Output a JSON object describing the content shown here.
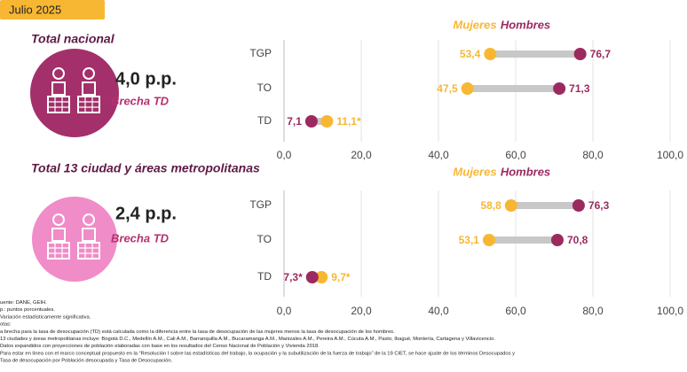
{
  "badge": "Julio 2025",
  "chart_data": [
    {
      "type": "dumbbell",
      "title": "Total nacional",
      "gap_label": "4,0 p.p.",
      "gap_caption": "Brecha TD",
      "categories": [
        "TGP",
        "TO",
        "TD"
      ],
      "series": [
        {
          "name": "Mujeres",
          "color": "#f8b733",
          "values": [
            53.4,
            47.5,
            11.1
          ],
          "value_labels": [
            "53,4",
            "47,5",
            "11,1*"
          ]
        },
        {
          "name": "Hombres",
          "color": "#9b2a5f",
          "values": [
            76.7,
            71.3,
            7.1
          ],
          "value_labels": [
            "76,7",
            "71,3",
            "7,1"
          ]
        }
      ],
      "xlim": [
        0,
        100
      ],
      "xticks": [
        {
          "value": 0,
          "label": "0,0"
        },
        {
          "value": 20,
          "label": "20,0"
        },
        {
          "value": 40,
          "label": "40,0"
        },
        {
          "value": 60,
          "label": "60,0"
        },
        {
          "value": 80,
          "label": "80,0"
        },
        {
          "value": 100,
          "label": "100,0"
        }
      ],
      "grid": true,
      "icon_color": "#a3306a"
    },
    {
      "type": "dumbbell",
      "title": "Total 13 ciudad y áreas metropolitanas",
      "gap_label": "2,4 p.p.",
      "gap_caption": "Brecha TD",
      "categories": [
        "TGP",
        "TO",
        "TD"
      ],
      "series": [
        {
          "name": "Mujeres",
          "color": "#f8b733",
          "values": [
            58.8,
            53.1,
            9.7
          ],
          "value_labels": [
            "58,8",
            "53,1",
            "9,7*"
          ]
        },
        {
          "name": "Hombres",
          "color": "#9b2a5f",
          "values": [
            76.3,
            70.8,
            7.3
          ],
          "value_labels": [
            "76,3",
            "70,8",
            "7,3*"
          ]
        }
      ],
      "xlim": [
        0,
        100
      ],
      "xticks": [
        {
          "value": 0,
          "label": "0,0"
        },
        {
          "value": 20,
          "label": "20,0"
        },
        {
          "value": 40,
          "label": "40,0"
        },
        {
          "value": 60,
          "label": "60,0"
        },
        {
          "value": 80,
          "label": "80,0"
        },
        {
          "value": 100,
          "label": "100,0"
        }
      ],
      "grid": true,
      "icon_color": "#f08cc8"
    }
  ],
  "footnotes": [
    "uente: DANE, GEIH.",
    "p.: puntos porcentuales.",
    "Variación estadísticamente significativa.",
    "otas:",
    "a brecha para la tasa de desocupación (TD) está calculada como la diferencia entre la tasa de desocupación de las mujeres menos la tasa de desocupación de los hombres.",
    "13 ciudades y áreas metropolitanas incluye: Bogotá D.C., Medellín A.M., Cali A.M., Barranquilla A.M., Bucaramanga A.M., Manizales A.M., Pereira A.M., Cúcuta A.M., Pasto, Ibagué, Montería, Cartagena y Villavicencio.",
    "Datos expandidos con proyecciones de población elaboradas con base en los resultados del Censo Nacional de Población y Vivienda 2018.",
    "Para estar en línea con el marco conceptual propuesto en la “Resolución I sobre las estadísticas del trabajo, la ocupación y la subutilización de la fuerza de trabajo” de la 19 CIET, se hace ajuste de los términos Desocupados y",
    "Tasa de desocupación por Población desocupada y Tasa de Desocupación."
  ]
}
